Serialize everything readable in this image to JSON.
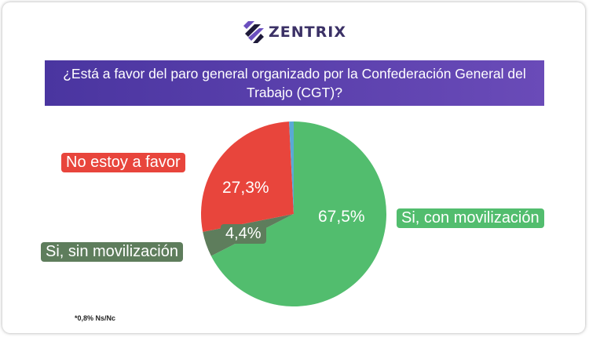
{
  "brand": {
    "name": "ZENTRIX"
  },
  "chart_data": {
    "type": "pie",
    "title": "¿Está a favor del paro general organizado por la Confederación General del Trabajo (CGT)?",
    "slices": [
      {
        "label": "Si, con movilización",
        "value": 67.5,
        "display": "67,5%",
        "color": "#52bd6e"
      },
      {
        "label": "Si, sin movilización",
        "value": 4.4,
        "display": "4,4%",
        "color": "#5e7d5c"
      },
      {
        "label": "No estoy a favor",
        "value": 27.3,
        "display": "27,3%",
        "color": "#e8453c"
      },
      {
        "label": "Ns/Nc",
        "value": 0.8,
        "display": "0,8%",
        "color": "#5aa9d6"
      }
    ],
    "footnote": "*0,8% Ns/Nc"
  }
}
